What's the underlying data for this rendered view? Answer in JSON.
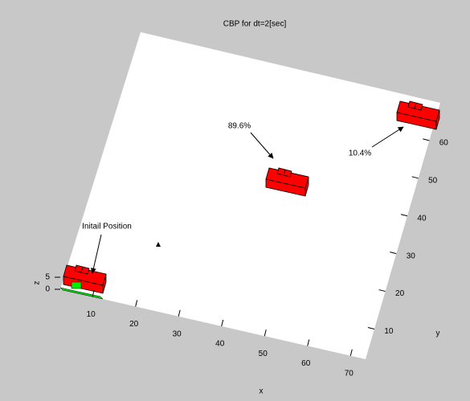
{
  "chart_data": {
    "type": "3d",
    "title": "CBP for dt=2[sec]",
    "xlabel": "x",
    "ylabel": "y",
    "zlabel": "z",
    "xlim": [
      2.5,
      73.5
    ],
    "xticks": [
      10,
      20,
      30,
      40,
      50,
      60,
      70
    ],
    "ylim": [
      2,
      70
    ],
    "yticks": [
      10,
      20,
      30,
      40,
      50,
      60
    ],
    "zlim": [
      0,
      6
    ],
    "zticks": [
      0,
      5
    ],
    "annotations": [
      "Initail Position",
      "89.6%",
      "10.4%"
    ]
  }
}
